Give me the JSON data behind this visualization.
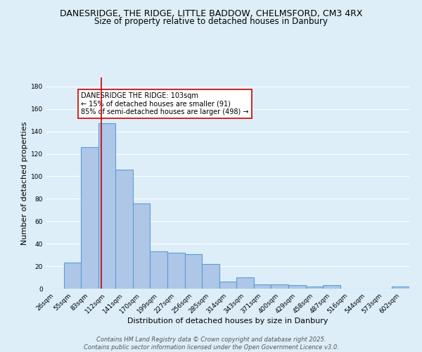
{
  "title_line1": "DANESRIDGE, THE RIDGE, LITTLE BADDOW, CHELMSFORD, CM3 4RX",
  "title_line2": "Size of property relative to detached houses in Danbury",
  "xlabel": "Distribution of detached houses by size in Danbury",
  "ylabel": "Number of detached properties",
  "bin_labels": [
    "26sqm",
    "55sqm",
    "83sqm",
    "112sqm",
    "141sqm",
    "170sqm",
    "199sqm",
    "227sqm",
    "256sqm",
    "285sqm",
    "314sqm",
    "343sqm",
    "371sqm",
    "400sqm",
    "429sqm",
    "458sqm",
    "487sqm",
    "516sqm",
    "544sqm",
    "573sqm",
    "602sqm"
  ],
  "bar_values": [
    0,
    23,
    126,
    147,
    106,
    76,
    33,
    32,
    31,
    22,
    6,
    10,
    4,
    4,
    3,
    2,
    3,
    0,
    0,
    0,
    2
  ],
  "bar_color": "#aec6e8",
  "bar_edge_color": "#5a9fd4",
  "bar_edge_width": 0.8,
  "red_line_x": 2.666,
  "red_line_color": "#cc0000",
  "annotation_text": "DANESRIDGE THE RIDGE: 103sqm\n← 15% of detached houses are smaller (91)\n85% of semi-detached houses are larger (498) →",
  "annotation_box_color": "#ffffff",
  "annotation_box_edge": "#cc0000",
  "ylim": [
    0,
    188
  ],
  "yticks": [
    0,
    20,
    40,
    60,
    80,
    100,
    120,
    140,
    160,
    180
  ],
  "background_color": "#ddeef8",
  "grid_color": "#ffffff",
  "footer_line1": "Contains HM Land Registry data © Crown copyright and database right 2025.",
  "footer_line2": "Contains public sector information licensed under the Open Government Licence v3.0.",
  "title_fontsize": 9,
  "subtitle_fontsize": 8.5,
  "axis_label_fontsize": 8,
  "tick_fontsize": 6.5,
  "annotation_fontsize": 7,
  "footer_fontsize": 6
}
